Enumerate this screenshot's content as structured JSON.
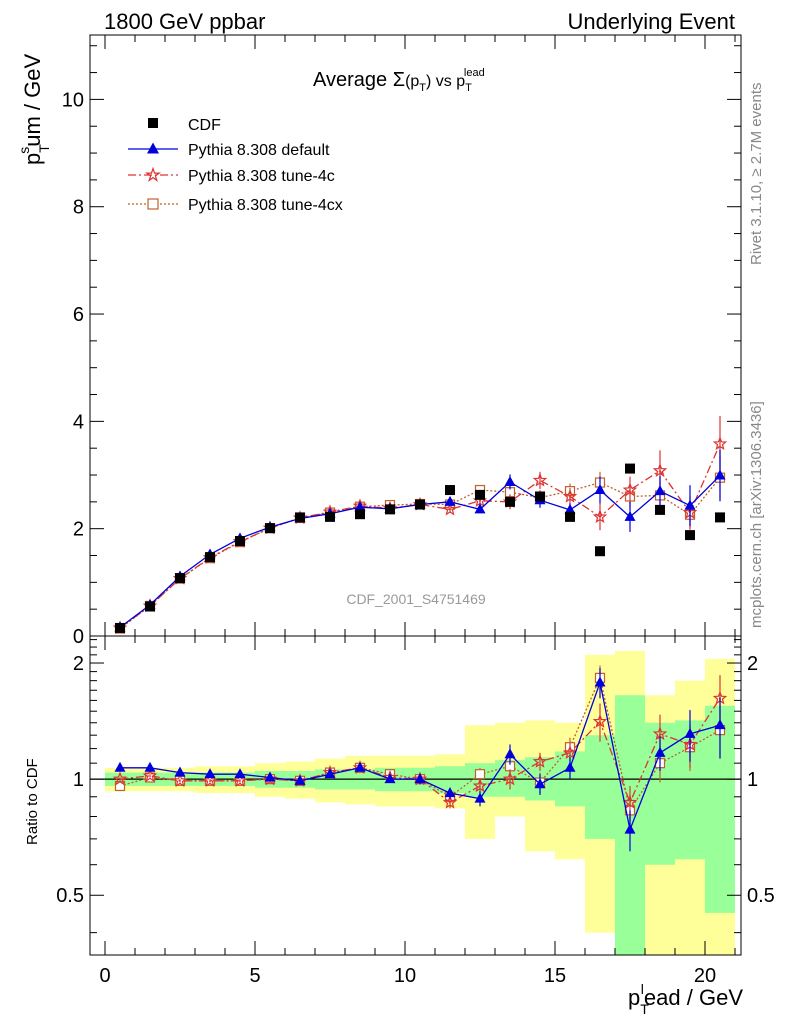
{
  "header": {
    "left": "1800 GeV ppbar",
    "right": "Underlying Event"
  },
  "side_labels": {
    "rivet": "Rivet 3.1.10, ≥ 2.7M events",
    "mcplots": "mcplots.cern.ch [arXiv:1306.3436]"
  },
  "watermark": "CDF_2001_S4751469",
  "colors": {
    "cdf": "#000000",
    "default": "#0000dd",
    "tune4c": "#dd3333",
    "tune4cx": "#c0602a",
    "band_inner": "#99ff99",
    "band_outer": "#ffff99"
  },
  "chart_data": [
    {
      "type": "scatter",
      "title": "Average Σ(p_T) vs p_T^lead",
      "title_parts": {
        "a": "Average ",
        "sigma": "Σ",
        "p": "(p",
        "t": "T",
        "close": ")",
        "vs": " vs p",
        "sub": "T",
        "sup": "lead"
      },
      "ylabel": "p_T^sum / GeV",
      "ylabel_parts": {
        "p": "p",
        "sub": "T",
        "sup": "s",
        "rest": "um / GeV"
      },
      "ylim": [
        0,
        11.2
      ],
      "yticks": [
        0,
        2,
        4,
        6,
        8,
        10
      ],
      "ytick_labels": [
        "0",
        "2",
        "4",
        "6",
        "8",
        "10"
      ],
      "xlim": [
        -0.5,
        21.2
      ],
      "legend": {
        "placement": "top-left",
        "entries": [
          {
            "key": "cdf",
            "label": "CDF"
          },
          {
            "key": "default",
            "label": "Pythia 8.308 default"
          },
          {
            "key": "tune4c",
            "label": "Pythia 8.308 tune-4c"
          },
          {
            "key": "tune4cx",
            "label": "Pythia 8.308 tune-4cx"
          }
        ]
      },
      "x": [
        0.5,
        1.5,
        2.5,
        3.5,
        4.5,
        5.5,
        6.5,
        7.5,
        8.5,
        9.5,
        10.5,
        11.5,
        12.5,
        13.5,
        14.5,
        15.5,
        16.5,
        17.5,
        18.5,
        19.5,
        20.5
      ],
      "series": [
        {
          "key": "cdf",
          "name": "CDF",
          "values": [
            0.15,
            0.55,
            1.08,
            1.47,
            1.77,
            2.01,
            2.21,
            2.22,
            2.27,
            2.36,
            2.45,
            2.72,
            2.63,
            2.5,
            2.6,
            2.22,
            1.58,
            3.12,
            2.35,
            1.88,
            2.21
          ]
        },
        {
          "key": "default",
          "name": "Pythia 8.308 default",
          "values": [
            0.16,
            0.58,
            1.11,
            1.52,
            1.82,
            2.03,
            2.19,
            2.28,
            2.4,
            2.37,
            2.45,
            2.5,
            2.36,
            2.87,
            2.53,
            2.35,
            2.72,
            2.22,
            2.7,
            2.43,
            2.99
          ],
          "errors": [
            0.01,
            0.01,
            0.01,
            0.01,
            0.01,
            0.01,
            0.02,
            0.02,
            0.03,
            0.03,
            0.04,
            0.05,
            0.07,
            0.14,
            0.14,
            0.12,
            0.25,
            0.28,
            0.28,
            0.38,
            0.48
          ]
        },
        {
          "key": "tune4c",
          "name": "Pythia 8.308 tune-4c",
          "values": [
            0.15,
            0.56,
            1.07,
            1.46,
            1.76,
            2.01,
            2.2,
            2.31,
            2.42,
            2.38,
            2.45,
            2.36,
            2.52,
            2.5,
            2.9,
            2.6,
            2.22,
            2.72,
            3.08,
            2.3,
            3.58
          ],
          "errors": [
            0.01,
            0.01,
            0.01,
            0.01,
            0.01,
            0.01,
            0.02,
            0.02,
            0.03,
            0.03,
            0.04,
            0.06,
            0.07,
            0.14,
            0.16,
            0.16,
            0.25,
            0.25,
            0.38,
            0.3,
            0.52
          ]
        },
        {
          "key": "tune4cx",
          "name": "Pythia 8.308 tune-4cx",
          "values": [
            0.14,
            0.56,
            1.07,
            1.45,
            1.75,
            2.01,
            2.2,
            2.3,
            2.41,
            2.44,
            2.46,
            2.45,
            2.72,
            2.68,
            2.58,
            2.7,
            2.86,
            2.6,
            2.62,
            2.26,
            2.95
          ],
          "errors": [
            0.01,
            0.01,
            0.01,
            0.01,
            0.01,
            0.01,
            0.02,
            0.02,
            0.03,
            0.03,
            0.04,
            0.05,
            0.07,
            0.14,
            0.14,
            0.14,
            0.2,
            0.22,
            0.25,
            0.28,
            0.4
          ]
        }
      ]
    },
    {
      "type": "scatter",
      "title": "",
      "ylabel": "Ratio to CDF",
      "xlabel": "p_T^lead / GeV",
      "xlabel_parts": {
        "p": "p",
        "sub": "T",
        "sup": "l",
        "rest": "ead / GeV"
      },
      "ylim": [
        0.35,
        2.35
      ],
      "yscale": "log",
      "yticks": [
        0.5,
        1,
        2
      ],
      "ytick_labels": [
        "0.5",
        "1",
        "2"
      ],
      "xlim": [
        -0.5,
        21.2
      ],
      "xticks": [
        0,
        5,
        10,
        15,
        20
      ],
      "xtick_labels": [
        "0",
        "5",
        "10",
        "15",
        "20"
      ],
      "bands": {
        "x_edges": [
          0,
          1,
          2,
          3,
          4,
          5,
          6,
          7,
          8,
          9,
          10,
          11,
          12,
          13,
          14,
          15,
          16,
          17,
          18,
          19,
          20,
          21
        ],
        "inner": [
          [
            0.96,
            1.04
          ],
          [
            0.96,
            1.04
          ],
          [
            0.96,
            1.04
          ],
          [
            0.96,
            1.04
          ],
          [
            0.96,
            1.04
          ],
          [
            0.95,
            1.05
          ],
          [
            0.95,
            1.05
          ],
          [
            0.94,
            1.06
          ],
          [
            0.94,
            1.06
          ],
          [
            0.93,
            1.07
          ],
          [
            0.93,
            1.07
          ],
          [
            0.92,
            1.08
          ],
          [
            0.9,
            1.1
          ],
          [
            0.9,
            1.12
          ],
          [
            0.88,
            1.14
          ],
          [
            0.85,
            1.18
          ],
          [
            0.7,
            1.3
          ],
          [
            0.35,
            1.65
          ],
          [
            0.6,
            1.4
          ],
          [
            0.62,
            1.42
          ],
          [
            0.45,
            1.55
          ]
        ],
        "outer": [
          [
            0.93,
            1.07
          ],
          [
            0.93,
            1.07
          ],
          [
            0.93,
            1.07
          ],
          [
            0.92,
            1.08
          ],
          [
            0.92,
            1.08
          ],
          [
            0.9,
            1.1
          ],
          [
            0.89,
            1.11
          ],
          [
            0.87,
            1.13
          ],
          [
            0.86,
            1.15
          ],
          [
            0.85,
            1.15
          ],
          [
            0.85,
            1.15
          ],
          [
            0.84,
            1.16
          ],
          [
            0.7,
            1.38
          ],
          [
            0.8,
            1.4
          ],
          [
            0.65,
            1.42
          ],
          [
            0.62,
            1.4
          ],
          [
            0.4,
            2.1
          ],
          [
            0.35,
            2.15
          ],
          [
            0.35,
            1.65
          ],
          [
            0.35,
            1.8
          ],
          [
            0.35,
            2.05
          ]
        ]
      },
      "reference": 1,
      "x": [
        0.5,
        1.5,
        2.5,
        3.5,
        4.5,
        5.5,
        6.5,
        7.5,
        8.5,
        9.5,
        10.5,
        11.5,
        12.5,
        13.5,
        14.5,
        15.5,
        16.5,
        17.5,
        18.5,
        19.5,
        20.5
      ],
      "series": [
        {
          "key": "default",
          "name": "Pythia 8.308 default",
          "values": [
            1.07,
            1.07,
            1.04,
            1.03,
            1.03,
            1.01,
            0.99,
            1.03,
            1.07,
            1.0,
            1.0,
            0.92,
            0.89,
            1.16,
            0.97,
            1.07,
            1.78,
            0.74,
            1.17,
            1.31,
            1.38
          ],
          "errors": [
            0.01,
            0.01,
            0.01,
            0.01,
            0.01,
            0.01,
            0.01,
            0.02,
            0.02,
            0.02,
            0.03,
            0.03,
            0.04,
            0.07,
            0.06,
            0.07,
            0.16,
            0.09,
            0.12,
            0.2,
            0.25
          ]
        },
        {
          "key": "tune4c",
          "name": "Pythia 8.308 tune-4c",
          "values": [
            1.0,
            1.02,
            0.99,
            0.99,
            0.99,
            1.0,
            0.99,
            1.04,
            1.07,
            1.01,
            1.0,
            0.87,
            0.96,
            1.0,
            1.11,
            1.17,
            1.41,
            0.87,
            1.31,
            1.23,
            1.62
          ],
          "errors": [
            0.01,
            0.01,
            0.01,
            0.01,
            0.01,
            0.01,
            0.01,
            0.02,
            0.02,
            0.02,
            0.03,
            0.03,
            0.04,
            0.06,
            0.06,
            0.07,
            0.16,
            0.09,
            0.16,
            0.16,
            0.24
          ]
        },
        {
          "key": "tune4cx",
          "name": "Pythia 8.308 tune-4cx",
          "values": [
            0.96,
            1.01,
            0.99,
            0.99,
            0.99,
            1.0,
            0.99,
            1.04,
            1.07,
            1.03,
            1.0,
            0.9,
            1.03,
            1.08,
            0.98,
            1.21,
            1.83,
            0.83,
            1.1,
            1.21,
            1.34
          ],
          "errors": [
            0.01,
            0.01,
            0.01,
            0.01,
            0.01,
            0.01,
            0.01,
            0.02,
            0.02,
            0.02,
            0.03,
            0.03,
            0.04,
            0.06,
            0.06,
            0.07,
            0.14,
            0.08,
            0.12,
            0.16,
            0.2
          ]
        }
      ]
    }
  ]
}
